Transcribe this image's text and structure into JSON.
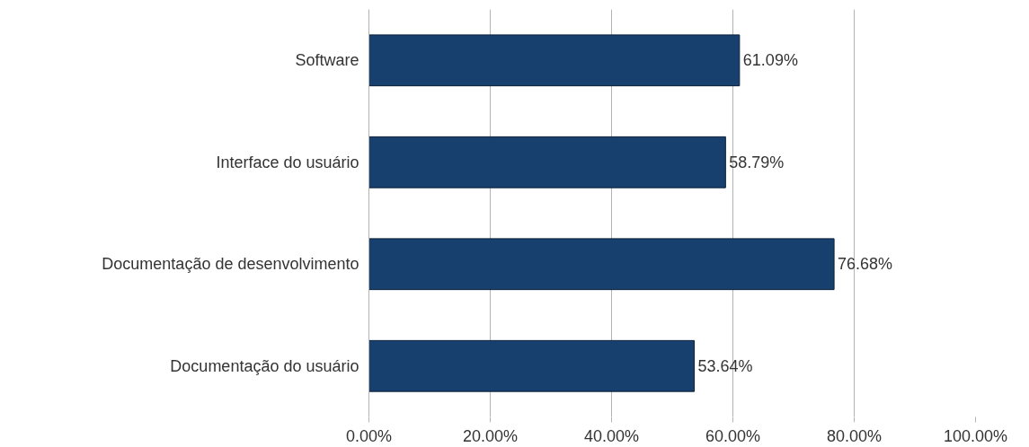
{
  "chart_data": {
    "type": "bar",
    "orientation": "horizontal",
    "categories": [
      "Software",
      "Interface do usuário",
      "Documentação de desenvolvimento",
      "Documentação do usuário"
    ],
    "values": [
      61.09,
      58.79,
      76.68,
      53.64
    ],
    "value_labels": [
      "61.09%",
      "58.79%",
      "76.68%",
      "53.64%"
    ],
    "color": "#17406e",
    "xlim": [
      0,
      100
    ],
    "xticks": [
      {
        "value": 0,
        "label": "0.00%"
      },
      {
        "value": 20,
        "label": "20.00%"
      },
      {
        "value": 40,
        "label": "40.00%"
      },
      {
        "value": 60,
        "label": "60.00%"
      },
      {
        "value": 80,
        "label": "80.00%"
      },
      {
        "value": 100,
        "label": "100.00%"
      }
    ],
    "grid": "x"
  }
}
